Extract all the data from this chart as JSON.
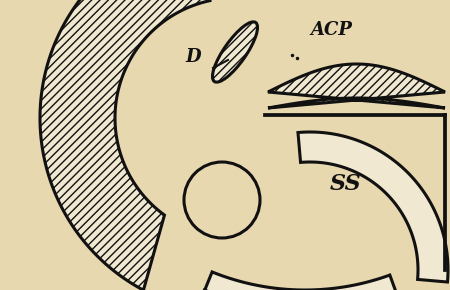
{
  "background_color": "#e8d8b0",
  "line_color": "#111111",
  "fill_bg": "#e8d8b0",
  "fill_white": "#f0e8d0",
  "label_D": "D",
  "label_ACP": "ACP",
  "label_SS": "SS",
  "figsize": [
    4.5,
    2.9
  ],
  "dpi": 100
}
